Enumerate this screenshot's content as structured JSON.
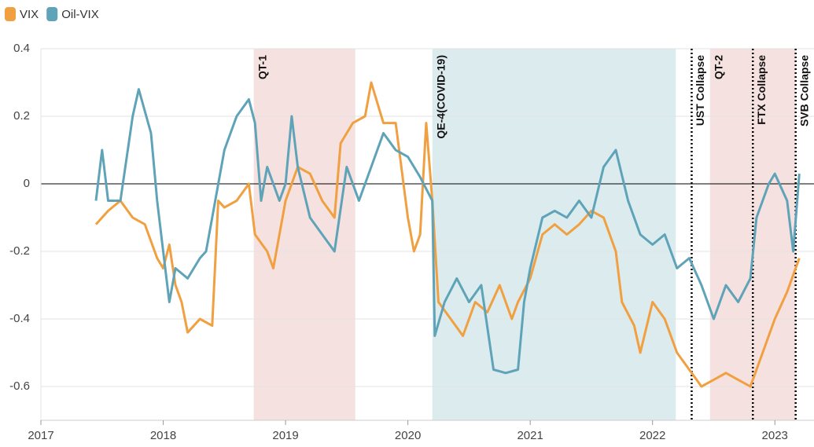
{
  "chart_data": {
    "type": "line",
    "xlim": [
      2017,
      2023.32
    ],
    "xticks": [
      2017,
      2018,
      2019,
      2020,
      2021,
      2022,
      2023
    ],
    "ylim": [
      -0.7,
      0.4
    ],
    "yticks": [
      0.4,
      0.2,
      0,
      -0.2,
      -0.4,
      -0.6
    ],
    "grid": true,
    "legend": "top-left",
    "regions": [
      {
        "label": "QT-1",
        "start": 2018.74,
        "end": 2019.57,
        "color": "#f5e1df"
      },
      {
        "label": "QE-4(COVID-19)",
        "start": 2020.2,
        "end": 2022.19,
        "color": "#dcebee"
      },
      {
        "label": "QT-2",
        "start": 2022.47,
        "end": 2023.17,
        "color": "#f5e1df"
      }
    ],
    "events": [
      {
        "label": "UST Collapse",
        "x": 2022.32
      },
      {
        "label": "FTX Collapse",
        "x": 2022.82
      },
      {
        "label": "SVB Collapse",
        "x": 2023.17
      }
    ],
    "series": [
      {
        "name": "VIX",
        "color": "#f0a040",
        "x": [
          2017.45,
          2017.55,
          2017.65,
          2017.75,
          2017.85,
          2017.95,
          2018.0,
          2018.05,
          2018.1,
          2018.15,
          2018.2,
          2018.3,
          2018.4,
          2018.45,
          2018.5,
          2018.6,
          2018.7,
          2018.75,
          2018.85,
          2018.9,
          2019.0,
          2019.1,
          2019.2,
          2019.3,
          2019.4,
          2019.45,
          2019.55,
          2019.65,
          2019.7,
          2019.8,
          2019.9,
          2020.0,
          2020.05,
          2020.1,
          2020.15,
          2020.2,
          2020.25,
          2020.35,
          2020.45,
          2020.55,
          2020.65,
          2020.75,
          2020.85,
          2020.9,
          2021.0,
          2021.1,
          2021.2,
          2021.3,
          2021.4,
          2021.5,
          2021.6,
          2021.7,
          2021.75,
          2021.85,
          2021.9,
          2022.0,
          2022.1,
          2022.2,
          2022.3,
          2022.4,
          2022.5,
          2022.6,
          2022.7,
          2022.8,
          2022.9,
          2023.0,
          2023.1,
          2023.2
        ],
        "values": [
          -0.12,
          -0.08,
          -0.05,
          -0.1,
          -0.12,
          -0.22,
          -0.25,
          -0.18,
          -0.3,
          -0.35,
          -0.44,
          -0.4,
          -0.42,
          -0.05,
          -0.07,
          -0.05,
          0.0,
          -0.15,
          -0.2,
          -0.25,
          -0.05,
          0.05,
          0.03,
          -0.05,
          -0.1,
          0.12,
          0.18,
          0.2,
          0.3,
          0.18,
          0.18,
          -0.1,
          -0.2,
          -0.15,
          0.18,
          -0.05,
          -0.35,
          -0.4,
          -0.45,
          -0.35,
          -0.38,
          -0.3,
          -0.4,
          -0.35,
          -0.28,
          -0.15,
          -0.12,
          -0.15,
          -0.12,
          -0.08,
          -0.1,
          -0.2,
          -0.35,
          -0.42,
          -0.5,
          -0.35,
          -0.4,
          -0.5,
          -0.55,
          -0.6,
          -0.58,
          -0.56,
          -0.58,
          -0.6,
          -0.5,
          -0.4,
          -0.32,
          -0.22
        ]
      },
      {
        "name": "Oil-VIX",
        "color": "#5fa3b8",
        "x": [
          2017.45,
          2017.5,
          2017.55,
          2017.65,
          2017.75,
          2017.8,
          2017.9,
          2017.95,
          2018.0,
          2018.05,
          2018.1,
          2018.2,
          2018.3,
          2018.35,
          2018.4,
          2018.5,
          2018.6,
          2018.7,
          2018.75,
          2018.8,
          2018.85,
          2018.95,
          2019.0,
          2019.05,
          2019.1,
          2019.2,
          2019.3,
          2019.4,
          2019.5,
          2019.6,
          2019.7,
          2019.8,
          2019.9,
          2020.0,
          2020.1,
          2020.2,
          2020.22,
          2020.3,
          2020.4,
          2020.5,
          2020.6,
          2020.7,
          2020.8,
          2020.9,
          2020.95,
          2021.0,
          2021.1,
          2021.2,
          2021.3,
          2021.4,
          2021.5,
          2021.6,
          2021.7,
          2021.8,
          2021.9,
          2022.0,
          2022.1,
          2022.2,
          2022.3,
          2022.4,
          2022.5,
          2022.6,
          2022.7,
          2022.8,
          2022.85,
          2022.95,
          2023.0,
          2023.1,
          2023.15,
          2023.2
        ],
        "values": [
          -0.05,
          0.1,
          -0.05,
          -0.05,
          0.2,
          0.28,
          0.15,
          -0.05,
          -0.2,
          -0.35,
          -0.25,
          -0.28,
          -0.22,
          -0.2,
          -0.1,
          0.1,
          0.2,
          0.25,
          0.18,
          -0.05,
          0.05,
          -0.05,
          0.0,
          0.2,
          0.05,
          -0.1,
          -0.15,
          -0.2,
          0.05,
          -0.05,
          0.05,
          0.15,
          0.1,
          0.08,
          0.02,
          -0.05,
          -0.45,
          -0.35,
          -0.28,
          -0.35,
          -0.3,
          -0.55,
          -0.56,
          -0.55,
          -0.35,
          -0.25,
          -0.1,
          -0.08,
          -0.1,
          -0.05,
          -0.1,
          0.05,
          0.1,
          -0.05,
          -0.15,
          -0.18,
          -0.15,
          -0.25,
          -0.22,
          -0.3,
          -0.4,
          -0.3,
          -0.35,
          -0.28,
          -0.1,
          0.0,
          0.03,
          -0.05,
          -0.2,
          0.03
        ]
      }
    ]
  }
}
